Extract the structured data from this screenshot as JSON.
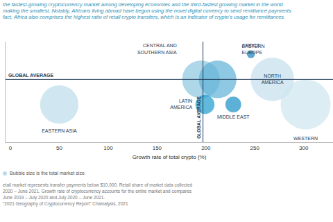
{
  "chart_data": {
    "type": "scatter",
    "intro": [
      "the fastest-growing cryptocurrency market among developing economies and the third-fastest growing market in the world.",
      "making the smallest. Notably, Africans living abroad have begun using the novel digital currency to send remittance payments",
      "fact, Africa also comprises the highest ratio of retail crypto transfers, which is an indicator of crypto's usage for remittances."
    ],
    "labels": [
      "EASTERN ASIA",
      "CENTRAL AND\nSOUTHERN ASIA",
      "EASTERN\nEUROPE",
      "LATIN\nAMERICA",
      "MIDDLE EAST",
      "AFRICA",
      "NORTH\nAMERICA",
      "WESTERN\nEUROPE"
    ],
    "x": [
      50,
      195,
      212,
      199,
      228,
      246,
      268,
      302
    ],
    "values": [
      3,
      5,
      5,
      3,
      3,
      7,
      5,
      3
    ],
    "size": [
      590,
      573,
      566,
      146,
      100,
      25,
      755,
      1000
    ],
    "colors": [
      "#bcdbea",
      "#8cc6df",
      "#5eb0d6",
      "#1d9bcc",
      "#1a90c4",
      "#1a7fb8",
      "#c4e0ed",
      "#cfe5ef"
    ],
    "global_average": {
      "label": "GLOBAL AVERAGE",
      "x": 197,
      "y": 5
    },
    "xlabel": "Growth rate of total crypto (%)",
    "xlim": [
      -5,
      330
    ],
    "xticks": [
      0,
      50,
      100,
      150,
      200,
      250,
      300
    ],
    "ylim": [
      0,
      8
    ],
    "yticks": [],
    "tick_labels": "x",
    "grid": false,
    "size_note": "Bubble size is the total market size",
    "notes": [
      "etail market represents transfer payments below $10,000. Retail share of market data collected",
      "2020 – June 2021. Growth rate of cryptocurrency accounts for the entire market and compares",
      "June 2019 – July 2020 and July 2020 – June 2021.",
      "\"2021 Geography of Cryptocurrency Report\" Chainalysis, 2021"
    ]
  }
}
